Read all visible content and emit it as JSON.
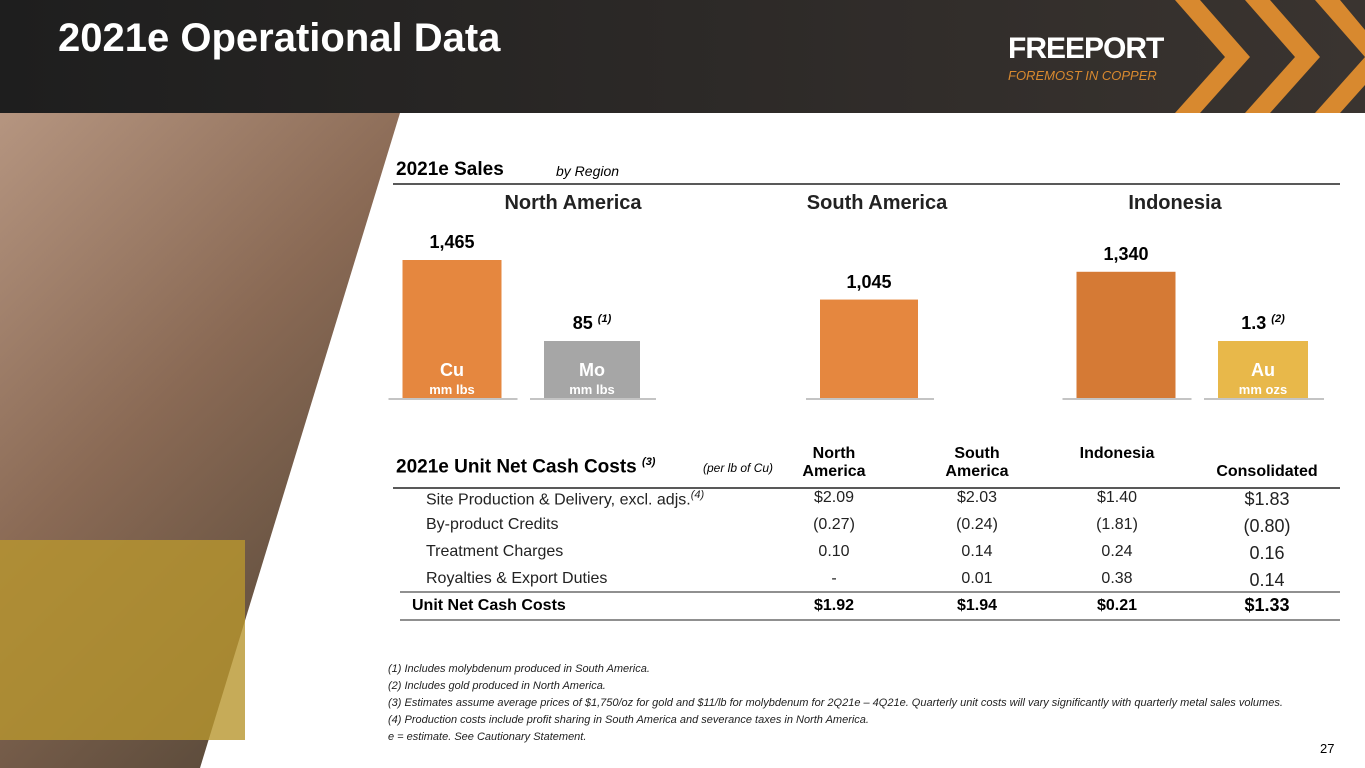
{
  "header": {
    "title": "2021e Operational Data",
    "logo": "FREEPORT",
    "tagline": "FOREMOST IN COPPER"
  },
  "sales": {
    "title": "2021e Sales",
    "subtitle": "by Region",
    "regions": [
      {
        "name": "North America",
        "bars": [
          {
            "metal": "Cu",
            "unit": "mm lbs",
            "value": 1465,
            "value_label": "1,465",
            "color": "#e5873f"
          },
          {
            "metal": "Mo",
            "unit": "mm lbs",
            "value": 85,
            "value_label": "85",
            "note": "(1)",
            "color": "#a6a6a6"
          }
        ]
      },
      {
        "name": "South America",
        "bars": [
          {
            "value": 1045,
            "value_label": "1,045",
            "color": "#e5873f"
          }
        ]
      },
      {
        "name": "Indonesia",
        "bars": [
          {
            "value": 1340,
            "value_label": "1,340",
            "color": "#d57a35"
          },
          {
            "metal": "Au",
            "unit": "mm ozs",
            "value": 1.3,
            "value_label": "1.3",
            "note": "(2)",
            "color": "#e8b84a"
          }
        ]
      }
    ]
  },
  "costs": {
    "title": "2021e Unit Net Cash Costs",
    "note": "(3)",
    "subtitle": "(per lb of Cu)",
    "columns": [
      "North America",
      "South America",
      "Indonesia",
      "Consolidated"
    ],
    "rows": [
      {
        "label": "Site Production & Delivery, excl. adjs.",
        "note": "(4)",
        "cells": [
          "$2.09",
          "$2.03",
          "$1.40",
          "$1.83"
        ]
      },
      {
        "label": "By-product Credits",
        "cells": [
          "(0.27)",
          "(0.24)",
          "(1.81)",
          "(0.80)"
        ]
      },
      {
        "label": "Treatment Charges",
        "cells": [
          "0.10",
          "0.14",
          "0.24",
          "0.16"
        ]
      },
      {
        "label": "Royalties & Export Duties",
        "cells": [
          "-",
          "0.01",
          "0.38",
          "0.14"
        ]
      }
    ],
    "total": {
      "label": "Unit Net Cash Costs",
      "cells": [
        "$1.92",
        "$1.94",
        "$0.21",
        "$1.33"
      ]
    }
  },
  "footnotes": [
    "(1) Includes molybdenum produced in South America.",
    "(2) Includes gold produced in North America.",
    "(3) Estimates assume average prices of $1,750/oz for gold and $11/lb for molybdenum for 2Q21e – 4Q21e. Quarterly unit costs will vary significantly with quarterly metal sales volumes.",
    "(4) Production costs include profit sharing in South America and severance taxes in North America.",
    "e = estimate. See Cautionary Statement."
  ],
  "page_number": "27"
}
